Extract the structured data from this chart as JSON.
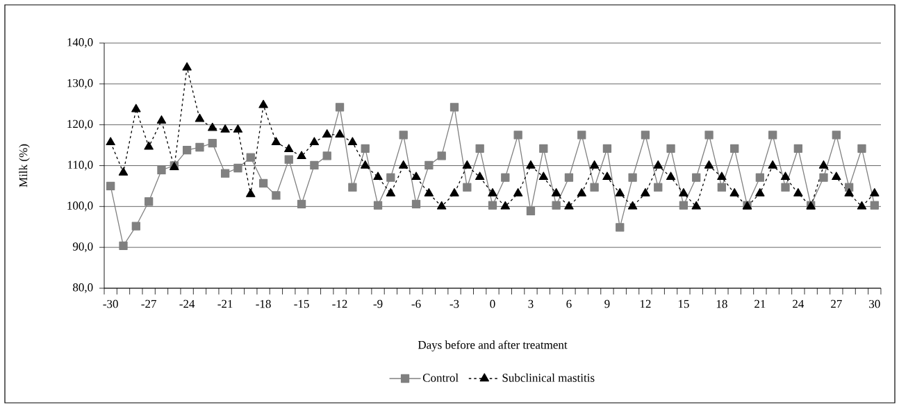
{
  "chart_data": {
    "type": "line",
    "xlabel": "Days before and after treatment",
    "ylabel": "Milk (%)",
    "categories": [
      "-30",
      null,
      null,
      "-27",
      null,
      null,
      "-24",
      null,
      null,
      "-21",
      null,
      null,
      "-18",
      null,
      null,
      "-15",
      null,
      null,
      "-12",
      null,
      null,
      "-9",
      null,
      null,
      "-6",
      null,
      null,
      "-3",
      null,
      null,
      "0",
      null,
      null,
      "3",
      null,
      null,
      "6",
      null,
      null,
      "9",
      null,
      null,
      "12",
      null,
      null,
      "15",
      null,
      null,
      "18",
      null,
      null,
      "21",
      null,
      null,
      "24",
      null,
      null,
      "27",
      null,
      null,
      "30"
    ],
    "ylim": [
      80,
      140
    ],
    "yticks": [
      {
        "value": 80,
        "label": "80,0"
      },
      {
        "value": 90,
        "label": "90,0"
      },
      {
        "value": 100,
        "label": "100,0"
      },
      {
        "value": 110,
        "label": "110,0"
      },
      {
        "value": 120,
        "label": "120,0"
      },
      {
        "value": 130,
        "label": "130,0"
      },
      {
        "value": 140,
        "label": "140,0"
      }
    ],
    "grid": "y",
    "legend": "bottom",
    "series": [
      {
        "name": "Control",
        "color": "#808080",
        "marker": "square",
        "line_style": "solid",
        "values": [
          105.0,
          90.4,
          95.2,
          101.2,
          108.9,
          110.0,
          113.8,
          114.5,
          115.5,
          108.1,
          109.4,
          112.0,
          105.7,
          102.7,
          111.5,
          100.6,
          110.1,
          112.4,
          124.3,
          104.7,
          114.2,
          100.3,
          107.1,
          117.5,
          100.6,
          110.1,
          112.4,
          124.3,
          104.7,
          114.2,
          100.3,
          107.1,
          117.5,
          98.9,
          114.2,
          100.3,
          107.1,
          117.5,
          104.7,
          114.2,
          94.9,
          107.1,
          117.5,
          104.7,
          114.2,
          100.3,
          107.1,
          117.5,
          104.7,
          114.2,
          100.3,
          107.1,
          117.5,
          104.7,
          114.2,
          100.3,
          107.1,
          117.5,
          104.7,
          114.2,
          100.3
        ]
      },
      {
        "name": "Subclinical mastitis",
        "color": "#000000",
        "marker": "triangle",
        "line_style": "dotted",
        "values": [
          115.7,
          108.3,
          123.8,
          114.6,
          121.0,
          109.6,
          134.0,
          121.4,
          119.2,
          118.8,
          118.8,
          103.0,
          124.8,
          115.7,
          114.0,
          112.3,
          115.7,
          117.6,
          117.6,
          115.7,
          110.0,
          107.2,
          103.2,
          110.0,
          107.2,
          103.2,
          100.0,
          103.2,
          110.0,
          107.2,
          103.2,
          100.0,
          103.2,
          110.0,
          107.2,
          103.2,
          100.0,
          103.2,
          110.0,
          107.2,
          103.2,
          100.0,
          103.2,
          110.0,
          107.2,
          103.2,
          100.0,
          110.0,
          107.2,
          103.2,
          100.0,
          103.2,
          110.0,
          107.2,
          103.2,
          100.0,
          110.0,
          107.2,
          103.2,
          100.0,
          103.2
        ]
      }
    ]
  }
}
